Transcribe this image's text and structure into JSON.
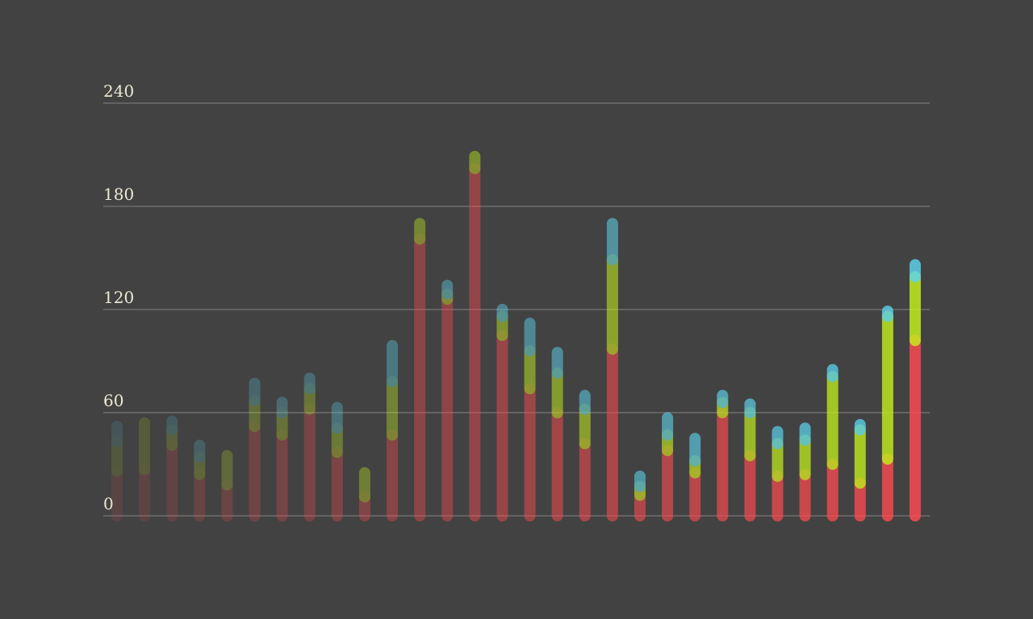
{
  "chart_data": {
    "type": "bar",
    "stacked": true,
    "grid": true,
    "ylim": [
      0,
      240
    ],
    "yticks": [
      0,
      60,
      120,
      180,
      240
    ],
    "series": [
      {
        "color": "#ff4a4f",
        "values": [
          26,
          27,
          41,
          24,
          18,
          52,
          47,
          62,
          37,
          11,
          47,
          161,
          126,
          202,
          105,
          74,
          60,
          42,
          97,
          12,
          38,
          25,
          60,
          35,
          23,
          24,
          30,
          19,
          33,
          102
        ]
      },
      {
        "color": "#c4f21c",
        "values": [
          17,
          27,
          9,
          10,
          17,
          15,
          13,
          12,
          14,
          14,
          31,
          9,
          3,
          7,
          11,
          22,
          23,
          20,
          52,
          5,
          9,
          7,
          6,
          25,
          19,
          20,
          51,
          31,
          83,
          37
        ]
      },
      {
        "color": "#5dd3ee",
        "values": [
          9,
          0,
          5,
          7,
          0,
          10,
          6,
          6,
          12,
          0,
          21,
          0,
          5,
          0,
          4,
          16,
          12,
          8,
          21,
          6,
          10,
          13,
          4,
          5,
          7,
          7,
          4,
          3,
          3,
          7
        ]
      }
    ]
  }
}
